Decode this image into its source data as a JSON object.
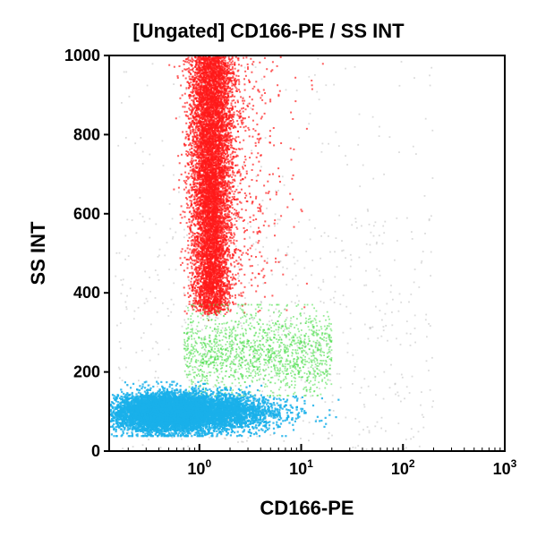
{
  "chart_data": {
    "type": "scatter",
    "title": "[Ungated] CD166-PE / SS INT",
    "xlabel": "CD166-PE",
    "ylabel": "SS INT",
    "x_scale": "log",
    "xlim": [
      0.13,
      1000
    ],
    "ylim": [
      0,
      1000
    ],
    "x_ticks": [
      {
        "value": 1,
        "base": "10",
        "exp": "0"
      },
      {
        "value": 10,
        "base": "10",
        "exp": "1"
      },
      {
        "value": 100,
        "base": "10",
        "exp": "2"
      },
      {
        "value": 1000,
        "base": "10",
        "exp": "3"
      }
    ],
    "y_ticks": [
      {
        "value": 0,
        "label": "0"
      },
      {
        "value": 200,
        "label": "200"
      },
      {
        "value": 400,
        "label": "400"
      },
      {
        "value": 600,
        "label": "600"
      },
      {
        "value": 800,
        "label": "800"
      },
      {
        "value": 1000,
        "label": "1000"
      }
    ],
    "grid": false,
    "legend": "none",
    "series": [
      {
        "color": "#ff1a1a",
        "x_center": 1.3,
        "y_range": [
          350,
          1000
        ],
        "count": 9000
      },
      {
        "color": "#44dd44",
        "x_range": [
          0.6,
          25
        ],
        "y_range": [
          140,
          370
        ],
        "count": 1500
      },
      {
        "color": "#1ab0ea",
        "x_range": [
          0.15,
          9
        ],
        "y_range": [
          40,
          160
        ],
        "count": 9000
      },
      {
        "color": "#b0b0b0",
        "x_range": [
          0.13,
          1000
        ],
        "y_range": [
          0,
          1000
        ],
        "count": 700
      }
    ]
  }
}
